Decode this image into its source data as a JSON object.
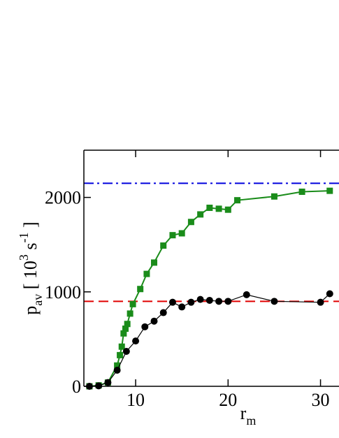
{
  "chart_data": {
    "type": "line",
    "xlabel": [
      {
        "text": "r"
      },
      {
        "text": "m",
        "shift": "sub"
      }
    ],
    "ylabel": [
      {
        "text": "p"
      },
      {
        "text": "av",
        "shift": "sub"
      },
      {
        "text": " [ 10"
      },
      {
        "text": "3",
        "shift": "super"
      },
      {
        "text": " s"
      },
      {
        "text": "-1",
        "shift": "super"
      },
      {
        "text": " ]"
      }
    ],
    "xlim": [
      4.4,
      32
    ],
    "ylim": [
      0,
      2500
    ],
    "xticks": [
      10,
      20,
      30
    ],
    "yticks": [
      0,
      1000,
      2000
    ],
    "series": [
      {
        "color": "#1a8c1a",
        "marker": "square",
        "x": [
          5,
          6,
          7,
          8,
          8.3,
          8.5,
          8.7,
          8.9,
          9.1,
          9.4,
          9.7,
          10.5,
          11.2,
          12,
          13,
          14,
          15,
          16,
          17,
          18,
          19,
          20,
          21,
          25,
          28,
          31
        ],
        "values": [
          0,
          10,
          40,
          220,
          330,
          420,
          560,
          610,
          660,
          770,
          870,
          1030,
          1190,
          1310,
          1490,
          1600,
          1620,
          1740,
          1820,
          1890,
          1880,
          1870,
          1970,
          2010,
          2060,
          2070
        ]
      },
      {
        "color": "#000000",
        "marker": "circle",
        "x": [
          5,
          6,
          7,
          8,
          9,
          10,
          11,
          12,
          13,
          14,
          15,
          16,
          17,
          18,
          19,
          20,
          22,
          25,
          30,
          31
        ],
        "values": [
          0,
          5,
          40,
          170,
          370,
          480,
          630,
          690,
          780,
          890,
          840,
          890,
          920,
          910,
          900,
          900,
          970,
          900,
          890,
          980
        ]
      }
    ],
    "hlines": [
      {
        "value": 900,
        "color": "#e00000",
        "dash": "14 7"
      },
      {
        "value": 2150,
        "color": "#0000dd",
        "dash": "14 5 3 5"
      }
    ]
  }
}
